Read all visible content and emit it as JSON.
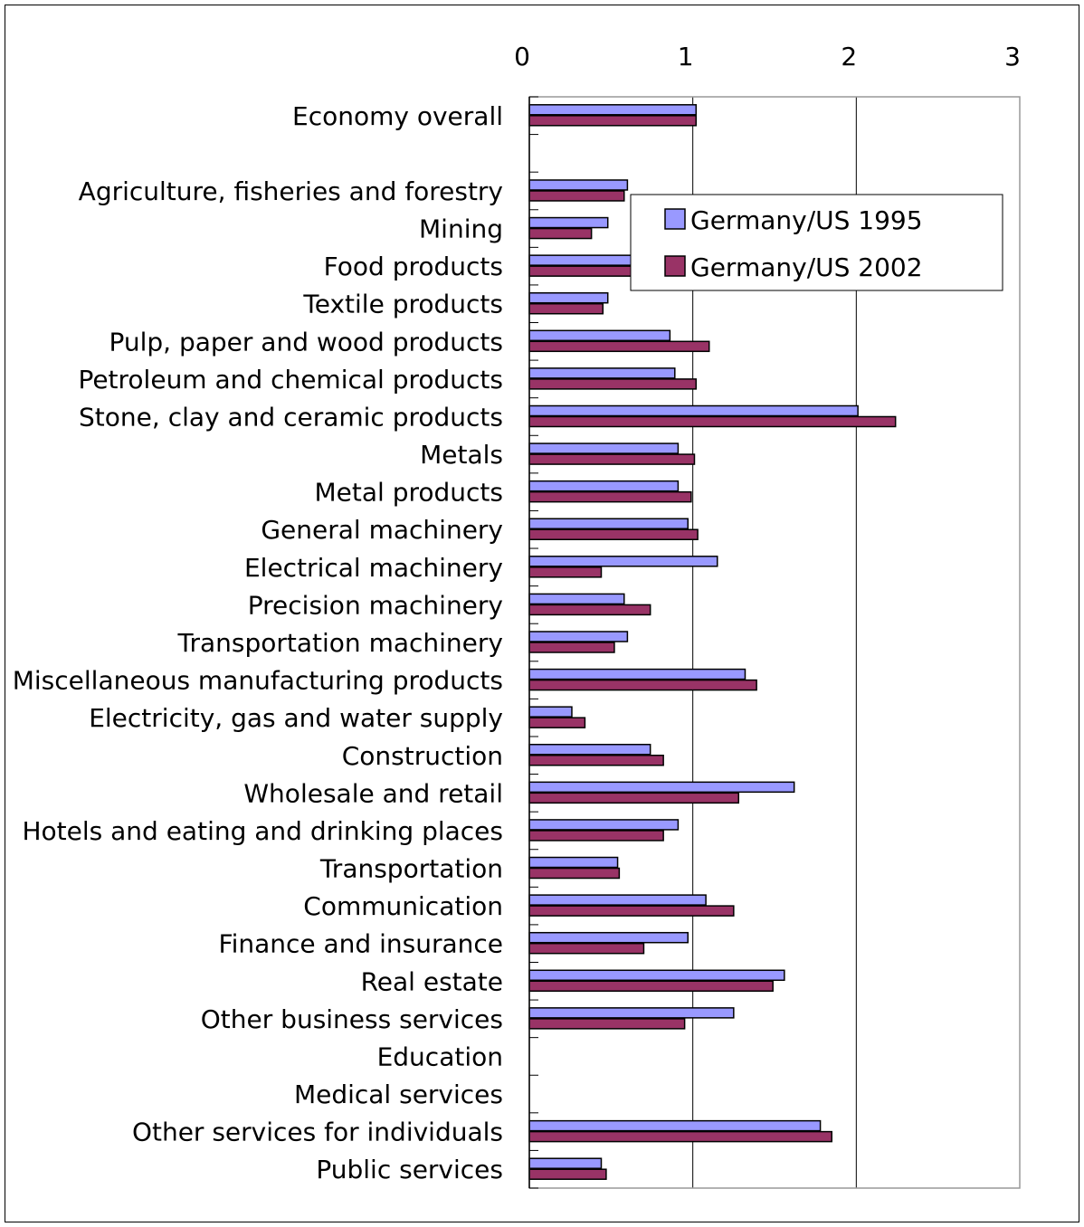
{
  "chart_data": {
    "type": "bar",
    "orientation": "horizontal",
    "title": "",
    "xlabel": "",
    "ylabel": "",
    "xlim": [
      0,
      3
    ],
    "x_ticks": [
      "0",
      "1",
      "2",
      "3"
    ],
    "x_axis_position": "top",
    "grid": true,
    "legend_position": "top-right",
    "categories": [
      "Economy overall",
      "",
      "Agriculture, fisheries and forestry",
      "Mining",
      "Food products",
      "Textile products",
      "Pulp, paper and wood products",
      "Petroleum and chemical products",
      "Stone, clay and ceramic products",
      "Metals",
      "Metal products",
      "General machinery",
      "Electrical machinery",
      "Precision machinery",
      "Transportation machinery",
      "Miscellaneous manufacturing products",
      "Electricity, gas and water supply",
      "Construction",
      "Wholesale and retail",
      "Hotels and eating and drinking places",
      "Transportation",
      "Communication",
      "Finance and insurance",
      "Real estate",
      "Other business services",
      "Education",
      "Medical services",
      "Other services for individuals",
      "Public services"
    ],
    "series": [
      {
        "name": "Germany/US 1995",
        "color": "#9999ff",
        "values": [
          1.02,
          null,
          0.6,
          0.48,
          0.75,
          0.48,
          0.86,
          0.89,
          2.01,
          0.91,
          0.91,
          0.97,
          1.15,
          0.58,
          0.6,
          1.32,
          0.26,
          0.74,
          1.62,
          0.91,
          0.54,
          1.08,
          0.97,
          1.56,
          1.25,
          null,
          null,
          1.78,
          0.44
        ]
      },
      {
        "name": "Germany/US 2002",
        "color": "#993366",
        "values": [
          1.02,
          null,
          0.58,
          0.38,
          0.7,
          0.45,
          1.1,
          1.02,
          2.24,
          1.01,
          0.99,
          1.03,
          0.44,
          0.74,
          0.52,
          1.39,
          0.34,
          0.82,
          1.28,
          0.82,
          0.55,
          1.25,
          0.7,
          1.49,
          0.95,
          null,
          null,
          1.85,
          0.47
        ]
      }
    ]
  }
}
